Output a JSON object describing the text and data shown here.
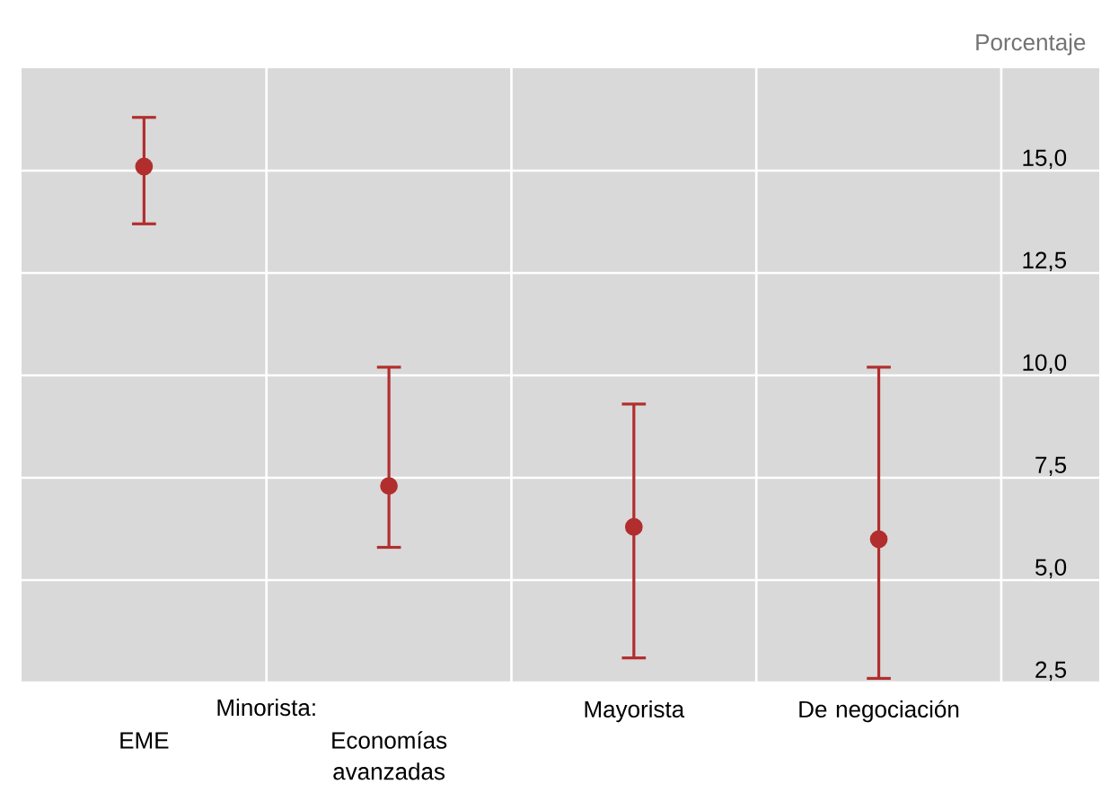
{
  "chart_data": {
    "type": "scatter",
    "ylabel": "Porcentaje",
    "categories": [
      "EME",
      "Economías avanzadas",
      "Mayorista",
      "De negociación"
    ],
    "values": [
      15.1,
      7.3,
      6.3,
      6.0
    ],
    "errors": [
      [
        13.7,
        16.3
      ],
      [
        5.8,
        10.2
      ],
      [
        3.1,
        9.3
      ],
      [
        2.6,
        10.2
      ]
    ],
    "color": "#b22e2e",
    "marker": "circle",
    "ylim": [
      2.5,
      17.5
    ],
    "yticks": [
      {
        "value": 2.5,
        "label": "2,5"
      },
      {
        "value": 5,
        "label": "5,0"
      },
      {
        "value": 7.5,
        "label": "7,5"
      },
      {
        "value": 10,
        "label": "10,0"
      },
      {
        "value": 12.5,
        "label": "12,5"
      },
      {
        "value": 15,
        "label": "15,0"
      }
    ],
    "grid": true,
    "annotations": [
      "Minorista:"
    ]
  }
}
